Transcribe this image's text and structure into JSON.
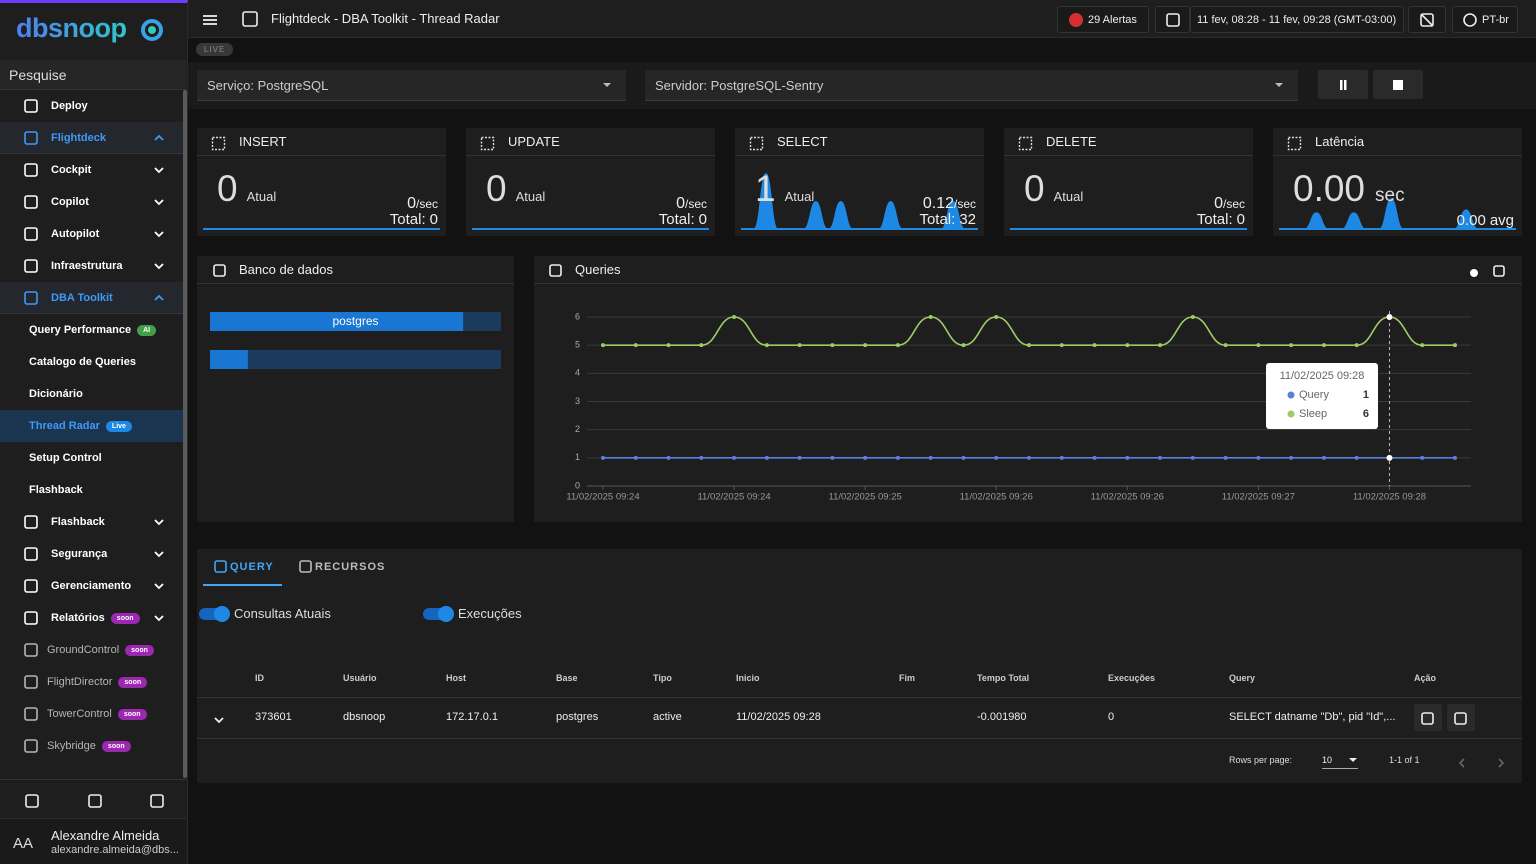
{
  "sidebar": {
    "logo": "dbsnoop",
    "search": "Pesquise",
    "menu": [
      {
        "label": "Deploy"
      },
      {
        "label": "Flightdeck",
        "expanded": true
      },
      {
        "label": "Cockpit",
        "expanded": false
      },
      {
        "label": "Copilot",
        "expanded": false
      },
      {
        "label": "Autopilot",
        "expanded": false
      },
      {
        "label": "Infraestrutura",
        "expanded": false
      },
      {
        "label": "DBA Toolkit",
        "expanded": true
      },
      {
        "label": "Query Performance",
        "sub": true,
        "badge": "AI"
      },
      {
        "label": "Catalogo de Queries",
        "sub": true
      },
      {
        "label": "Dicionário",
        "sub": true
      },
      {
        "label": "Thread Radar",
        "sub": true,
        "badge": "Live",
        "active": true
      },
      {
        "label": "Setup Control",
        "sub": true
      },
      {
        "label": "Flashback",
        "sub": true
      },
      {
        "label": "Flashback",
        "expanded": false
      },
      {
        "label": "Segurança",
        "expanded": false
      },
      {
        "label": "Gerenciamento",
        "expanded": false
      },
      {
        "label": "Relatórios",
        "badge": "soon",
        "expanded": false
      },
      {
        "label": "GroundControl",
        "badge": "soon"
      },
      {
        "label": "FlightDirector",
        "badge": "soon"
      },
      {
        "label": "TowerControl",
        "badge": "soon"
      },
      {
        "label": "Skybridge",
        "badge": "soon"
      }
    ],
    "user": {
      "initials": "AA",
      "name": "Alexandre Almeida",
      "email": "alexandre.almeida@dbs..."
    }
  },
  "header": {
    "title": "Flightdeck - DBA Toolkit - Thread Radar",
    "alerts": "29 Alertas",
    "date_range": "11 fev, 08:28 - 11 fev, 09:28 (GMT-03:00)",
    "language": "PT-br",
    "status": "LIVE"
  },
  "filters": {
    "service": "Serviço: PostgreSQL",
    "server": "Servidor: PostgreSQL-Sentry"
  },
  "stats": [
    {
      "title": "INSERT",
      "current": 0,
      "current_label": "Atual",
      "rate": 0,
      "rate_unit": "/sec",
      "total_label": "Total:",
      "total": 0
    },
    {
      "title": "UPDATE",
      "current": 0,
      "current_label": "Atual",
      "rate": 0,
      "rate_unit": "/sec",
      "total_label": "Total:",
      "total": 0
    },
    {
      "title": "SELECT",
      "current": 1,
      "current_label": "Atual",
      "rate": 0.12,
      "rate_unit": "/sec",
      "total_label": "Total:",
      "total": 32,
      "spark": [
        0,
        0,
        1,
        0,
        0,
        0,
        0.5,
        0,
        0.5,
        0,
        0,
        0,
        0.5,
        0,
        0,
        0,
        0,
        0.5,
        0,
        0
      ],
      "spark_ylim": [
        0,
        1
      ]
    },
    {
      "title": "DELETE",
      "current": 0,
      "current_label": "Atual",
      "rate": 0,
      "rate_unit": "/sec",
      "total_label": "Total:",
      "total": 0
    },
    {
      "title": "Latência",
      "current": "0.00",
      "current_label": "sec",
      "avg": "0.00",
      "avg_label": "avg",
      "spark": [
        0,
        0,
        0,
        0.3,
        0,
        0,
        0.3,
        0,
        0,
        0.55,
        0,
        0,
        0,
        0,
        0,
        0.35,
        0,
        0,
        0,
        0
      ],
      "spark_ylim": [
        0,
        1
      ]
    }
  ],
  "databases": {
    "title": "Banco de dados",
    "xlim": [
      0,
      100
    ],
    "bars": [
      {
        "label": "postgres",
        "value": 87
      },
      {
        "value": 13
      }
    ]
  },
  "queries_chart": {
    "type": "line",
    "title": "Queries",
    "categories": [
      "11/02/2025 09:24",
      null,
      null,
      null,
      "11/02/2025 09:24",
      null,
      null,
      null,
      "11/02/2025 09:25",
      null,
      null,
      null,
      "11/02/2025 09:26",
      null,
      null,
      null,
      "11/02/2025 09:26",
      null,
      null,
      null,
      "11/02/2025 09:27",
      null,
      null,
      null,
      "11/02/2025 09:28",
      null,
      null
    ],
    "series": [
      {
        "name": "Query",
        "color": "#5b7fe0",
        "values": [
          1,
          1,
          1,
          1,
          1,
          1,
          1,
          1,
          1,
          1,
          1,
          1,
          1,
          1,
          1,
          1,
          1,
          1,
          1,
          1,
          1,
          1,
          1,
          1,
          1,
          1,
          1
        ]
      },
      {
        "name": "Sleep",
        "color": "#9ccc65",
        "values": [
          5,
          5,
          5,
          5,
          6,
          5,
          5,
          5,
          5,
          5,
          6,
          5,
          6,
          5,
          5,
          5,
          5,
          5,
          6,
          5,
          5,
          5,
          5,
          5,
          6,
          5,
          5
        ]
      }
    ],
    "ylim": [
      0,
      6
    ],
    "yticks": [
      0,
      1,
      2,
      3,
      4,
      5,
      6
    ],
    "grid": true,
    "tooltip_index": 24
  },
  "tabs": [
    "QUERY",
    "RECURSOS"
  ],
  "toggles": [
    "Consultas Atuais",
    "Execuções"
  ],
  "table": {
    "columns": [
      "ID",
      "Usuário",
      "Host",
      "Base",
      "Tipo",
      "Inicio",
      "Fim",
      "Tempo Total",
      "Execuções",
      "Query",
      "Ação"
    ],
    "rows": [
      [
        373601,
        "dbsnoop",
        "172.17.0.1",
        "postgres",
        "active",
        "11/02/2025 09:28",
        null,
        "-0.001980",
        0,
        "SELECT datname \"Db\", pid \"Id\",..."
      ]
    ]
  },
  "pagination": {
    "rows_per_page_label": "Rows per page:",
    "rows_per_page": 10,
    "range": "1-1 of 1"
  }
}
